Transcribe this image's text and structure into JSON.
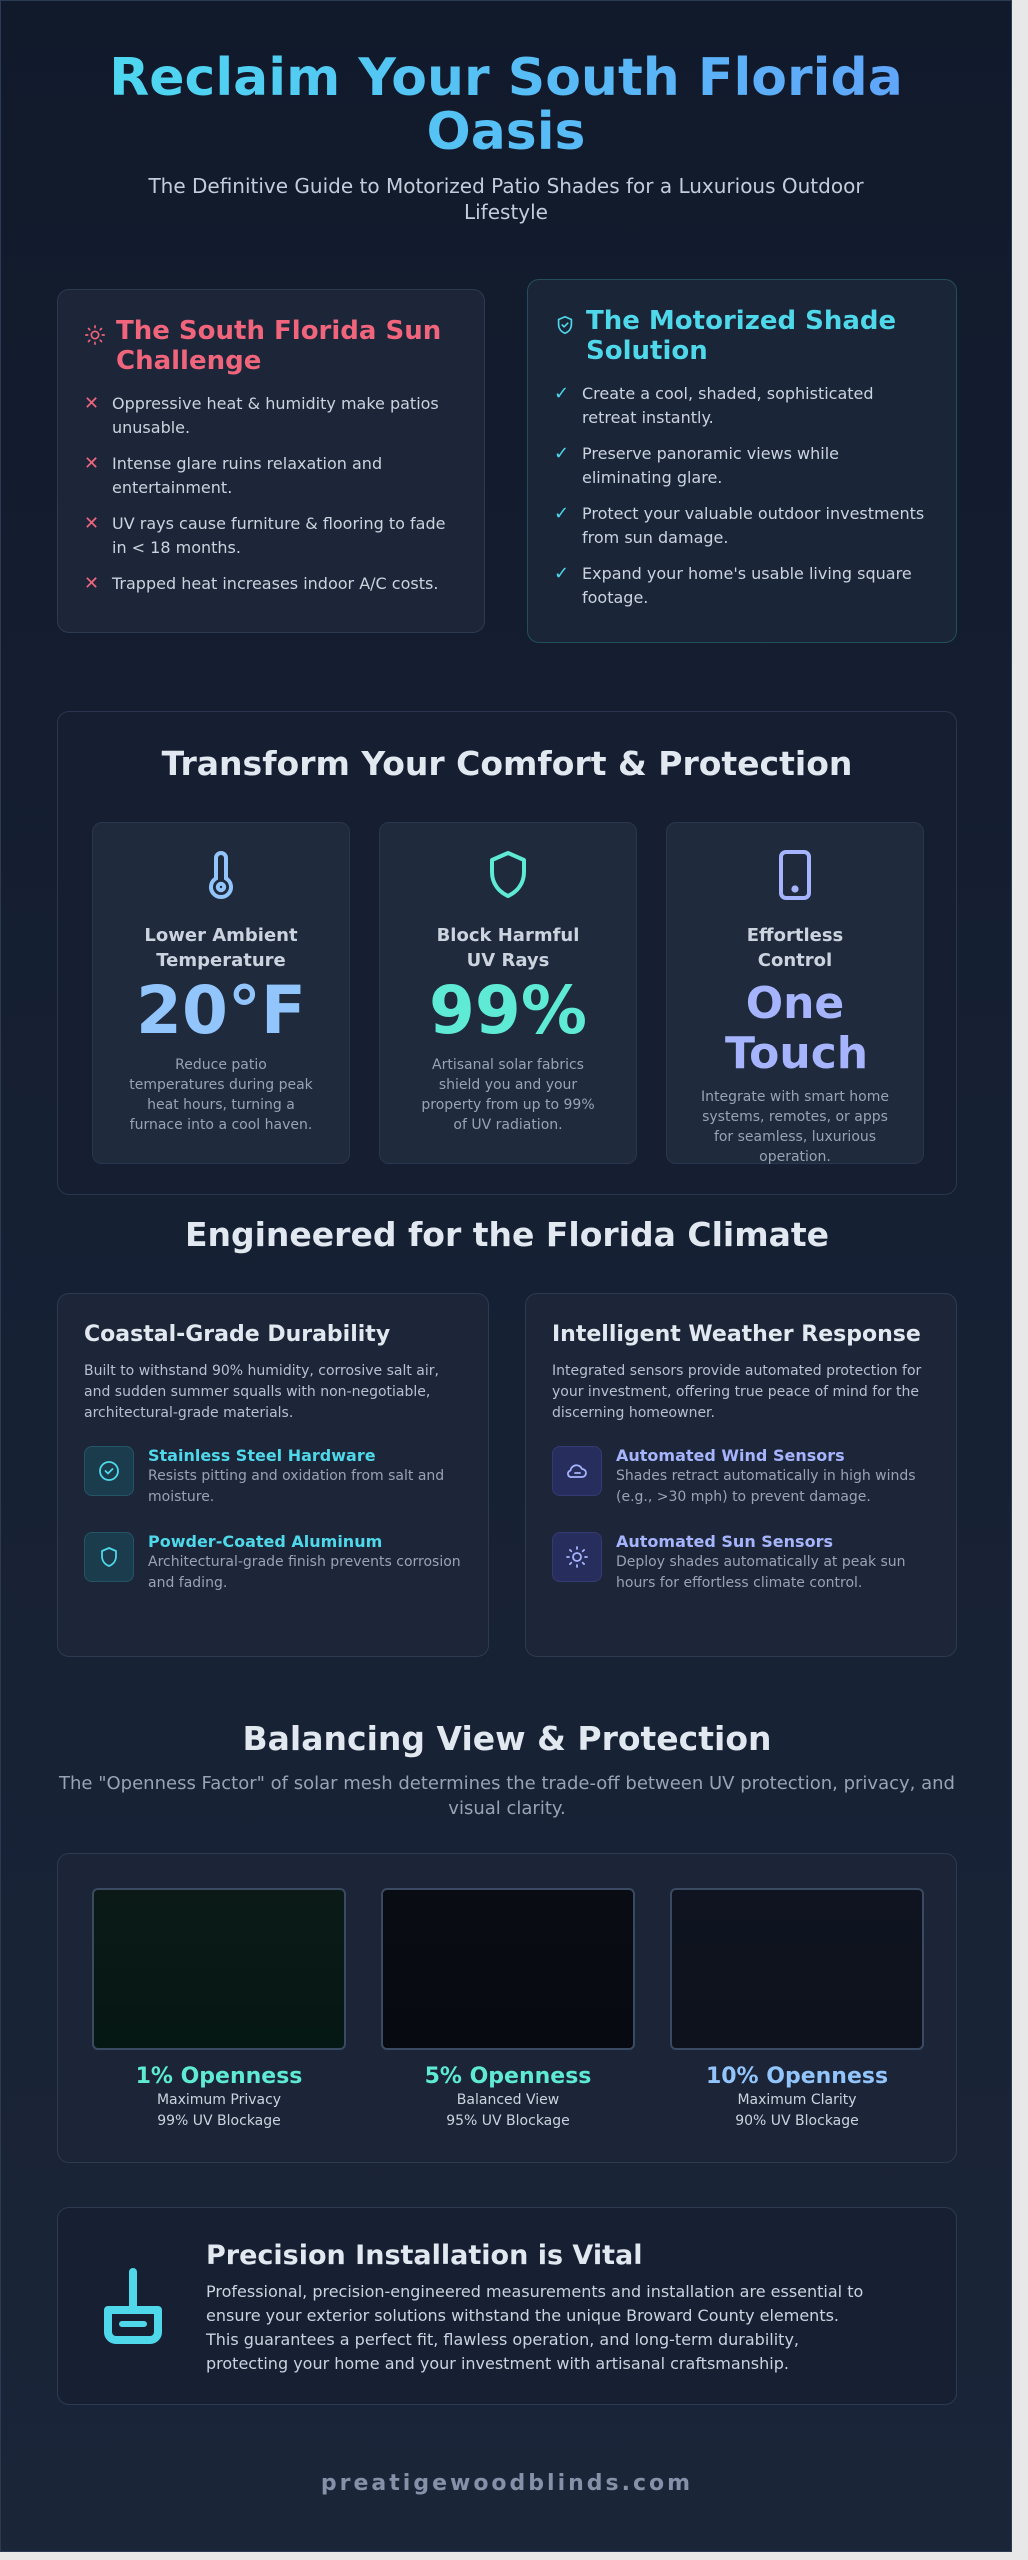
{
  "hero": {
    "title": "Reclaim Your South Florida Oasis",
    "subtitle": "The Definitive Guide to Motorized Patio Shades for a Luxurious Outdoor Lifestyle"
  },
  "challenge": {
    "icon": "sun-icon",
    "title": "The South Florida Sun Challenge",
    "items": [
      "Oppressive heat & humidity make patios unusable.",
      "Intense glare ruins relaxation and entertainment.",
      "UV rays cause furniture & flooring to fade in < 18 months.",
      "Trapped heat increases indoor A/C costs."
    ]
  },
  "solution": {
    "icon": "shield-check-icon",
    "title": "The Motorized Shade Solution",
    "items": [
      "Create a cool, shaded, sophisticated retreat instantly.",
      "Preserve panoramic views while eliminating glare.",
      "Protect your valuable outdoor investments from sun damage.",
      "Expand your home's usable living square footage."
    ]
  },
  "transform": {
    "title": "Transform Your Comfort & Protection",
    "stats": [
      {
        "icon": "thermometer-icon",
        "label": "Lower Ambient Temperature",
        "value": "20°F",
        "desc": "Reduce patio temperatures during peak heat hours, turning a furnace into a cool haven.",
        "color": "#93c5fd"
      },
      {
        "icon": "shield-icon",
        "label": "Block Harmful UV Rays",
        "value": "99%",
        "desc": "Artisanal solar fabrics shield you and your property from up to 99% of UV radiation.",
        "color": "#5eead4"
      },
      {
        "icon": "smartphone-icon",
        "label": "Effortless Control",
        "value": "One Touch",
        "desc": "Integrate with smart home systems, remotes, or apps for seamless, luxurious operation.",
        "color": "#a5b4fc"
      }
    ]
  },
  "engineered": {
    "title": "Engineered for the Florida Climate",
    "cards": [
      {
        "title": "Coastal-Grade Durability",
        "desc": "Built to withstand 90% humidity, corrosive salt air, and sudden summer squalls with non-negotiable, architectural-grade materials.",
        "features": [
          {
            "icon": "check-circle-icon",
            "title": "Stainless Steel Hardware",
            "desc": "Resists pitting and oxidation from salt and moisture."
          },
          {
            "icon": "shield-icon",
            "title": "Powder-Coated Aluminum",
            "desc": "Architectural-grade finish prevents corrosion and fading."
          }
        ]
      },
      {
        "title": "Intelligent Weather Response",
        "desc": "Integrated sensors provide automated protection for your investment, offering true peace of mind for the discerning homeowner.",
        "features": [
          {
            "icon": "wind-cloud-icon",
            "title": "Automated Wind Sensors",
            "desc": "Shades retract automatically in high winds (e.g., >30 mph) to prevent damage."
          },
          {
            "icon": "sun-icon",
            "title": "Automated Sun Sensors",
            "desc": "Deploy shades automatically at peak sun hours for effortless climate control."
          }
        ]
      }
    ]
  },
  "balance": {
    "title": "Balancing View & Protection",
    "subtitle": "The \"Openness Factor\" of solar mesh determines the trade-off between UV protection, privacy, and visual clarity.",
    "options": [
      {
        "title": "1% Openness",
        "line1": "Maximum Privacy",
        "line2": "99% UV Blockage",
        "color": "#5eead4",
        "swatch_top": "#0b1a16",
        "swatch_bottom": "#061814"
      },
      {
        "title": "5% Openness",
        "line1": "Balanced View",
        "line2": "95% UV Blockage",
        "color": "#5eead4",
        "swatch_top": "#0a0c14",
        "swatch_bottom": "#080a12"
      },
      {
        "title": "10% Openness",
        "line1": "Maximum Clarity",
        "line2": "90% UV Blockage",
        "color": "#93c5fd",
        "swatch_top": "#0f1420",
        "swatch_bottom": "#0d121c"
      }
    ]
  },
  "install": {
    "icon": "tool-icon",
    "title": "Precision Installation is Vital",
    "desc": "Professional, precision-engineered measurements and installation are essential to ensure your exterior solutions withstand the unique Broward County elements. This guarantees a perfect fit, flawless operation, and long-term durability, protecting your home and your investment with artisanal craftsmanship."
  },
  "footer": {
    "site": "preatigewoodblinds.com"
  }
}
